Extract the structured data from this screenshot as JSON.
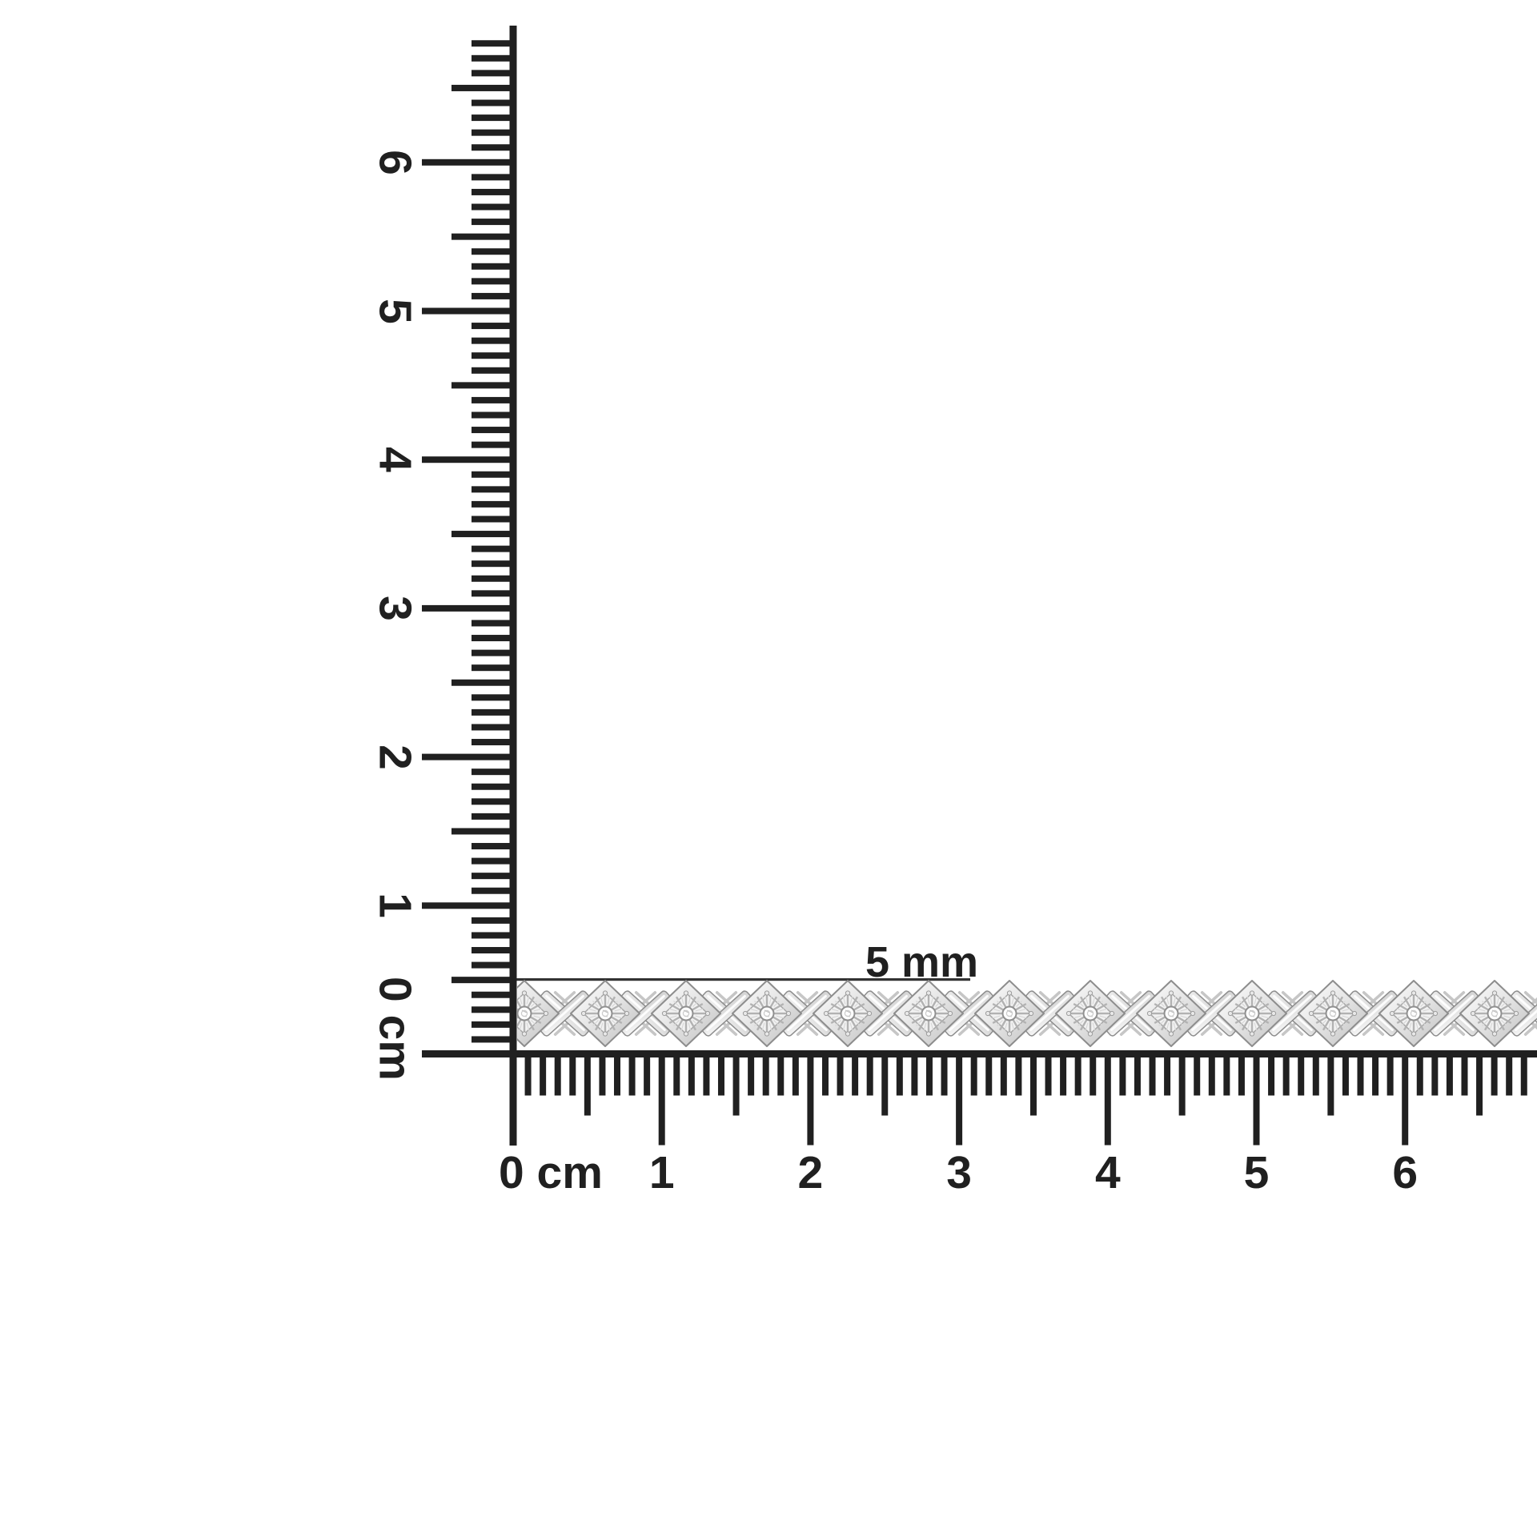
{
  "scene": {
    "description": "Product measurement photo of a diamond X-link tennis bracelet laid horizontally between two centimeter rulers",
    "background_color": "#ffffff",
    "ink_color": "#202020"
  },
  "annotation": {
    "width_label": "5 mm"
  },
  "vertical_ruler": {
    "unit_label": "cm",
    "zero_label": "0 cm",
    "numbers": [
      "1",
      "2",
      "3",
      "4",
      "5",
      "6"
    ]
  },
  "horizontal_ruler": {
    "unit_label": "cm",
    "zero_label": "0 cm",
    "numbers": [
      "1",
      "2",
      "3",
      "4",
      "5",
      "6"
    ]
  },
  "bracelet": {
    "type": "diamond tennis bracelet with alternating X links and diamond-set square links",
    "metal_color": "#e2e2e2",
    "band_width_label_mm": 5,
    "visible_diamond_links": 13,
    "visible_x_links": 13
  }
}
